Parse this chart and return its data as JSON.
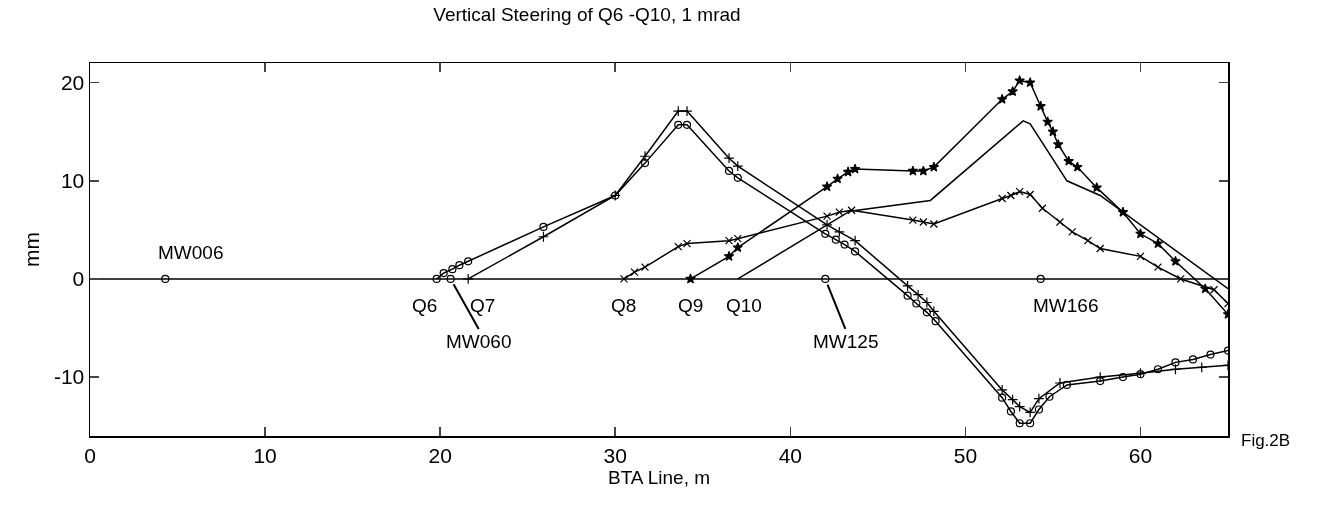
{
  "chart_data": {
    "type": "line",
    "title": "Vertical Steering of Q6 -Q10, 1 mrad",
    "xlabel": "BTA Line, m",
    "ylabel": "mm",
    "xlim": [
      0,
      65
    ],
    "ylim": [
      -16,
      22
    ],
    "xticks": [
      0,
      10,
      20,
      30,
      40,
      50,
      60
    ],
    "yticks": [
      -10,
      0,
      10,
      20
    ],
    "grid": false,
    "line_style": "solid",
    "series": [
      {
        "color": "#000000",
        "marker": "circle",
        "x": [
          19.8,
          20.2,
          20.7,
          21.1,
          21.6,
          25.9,
          30.0,
          31.7,
          33.6,
          34.1,
          36.5,
          37.0,
          42.0,
          42.6,
          43.1,
          43.7,
          46.7,
          47.2,
          47.8,
          48.3,
          52.1,
          52.6,
          53.1,
          53.7,
          54.2,
          54.8,
          55.8,
          57.7,
          59.0,
          60.0,
          61.0,
          62.0,
          63.0,
          64.0,
          65.0
        ],
        "values": [
          0,
          0.6,
          1.0,
          1.4,
          1.8,
          5.3,
          8.5,
          11.8,
          15.7,
          15.7,
          11.0,
          10.3,
          4.6,
          4.0,
          3.5,
          2.8,
          -1.7,
          -2.5,
          -3.4,
          -4.3,
          -12.1,
          -13.5,
          -14.7,
          -14.7,
          -13.3,
          -12.0,
          -10.8,
          -10.4,
          -10.0,
          -9.7,
          -9.2,
          -8.5,
          -8.2,
          -7.7,
          -7.3
        ]
      },
      {
        "color": "#000000",
        "marker": "cross",
        "x": [
          21.6,
          25.9,
          30.0,
          31.7,
          33.6,
          34.1,
          36.5,
          37.0,
          42.1,
          42.8,
          43.7,
          46.7,
          47.3,
          47.8,
          48.2,
          52.1,
          52.7,
          53.1,
          53.7,
          54.2,
          55.4,
          57.7,
          60.0,
          62.0,
          63.5,
          65.0
        ],
        "values": [
          0,
          4.3,
          8.5,
          12.5,
          17.1,
          17.1,
          12.3,
          11.5,
          5.5,
          4.8,
          3.9,
          -0.7,
          -1.6,
          -2.4,
          -3.3,
          -11.3,
          -12.3,
          -13.0,
          -13.6,
          -12.2,
          -10.6,
          -10.0,
          -9.6,
          -9.2,
          -9.0,
          -8.8
        ]
      },
      {
        "color": "#000000",
        "marker": "x",
        "x": [
          30.5,
          31.1,
          31.7,
          33.6,
          34.1,
          36.5,
          37.0,
          42.1,
          42.8,
          43.5,
          47.0,
          47.6,
          48.2,
          52.1,
          52.6,
          53.1,
          53.7,
          54.4,
          55.4,
          56.1,
          57.0,
          57.7,
          60.0,
          61.0,
          62.3,
          64.2,
          65.0
        ],
        "values": [
          0,
          0.7,
          1.2,
          3.3,
          3.6,
          3.9,
          4.1,
          6.4,
          6.8,
          7.0,
          6.0,
          5.8,
          5.6,
          8.2,
          8.5,
          8.9,
          8.6,
          7.2,
          5.8,
          4.8,
          3.9,
          3.1,
          2.3,
          1.2,
          0,
          -1.1,
          -2.5
        ]
      },
      {
        "color": "#000000",
        "marker": "star",
        "x": [
          34.3,
          36.5,
          37.0,
          42.1,
          42.7,
          43.3,
          43.7,
          47.0,
          47.6,
          48.2,
          52.1,
          52.7,
          53.1,
          53.7,
          54.3,
          54.7,
          55.0,
          55.3,
          55.9,
          56.4,
          57.5,
          59.0,
          60.0,
          61.0,
          62.0,
          63.7,
          65.0
        ],
        "values": [
          0,
          2.3,
          3.2,
          9.4,
          10.2,
          10.9,
          11.2,
          11.0,
          11.0,
          11.4,
          18.3,
          19.1,
          20.2,
          20.0,
          17.6,
          16.0,
          15.0,
          13.7,
          12.0,
          11.4,
          9.3,
          6.8,
          4.6,
          3.6,
          1.8,
          -1.0,
          -3.6
        ]
      },
      {
        "color": "#000000",
        "marker": "none",
        "x": [
          37.0,
          43.4,
          48.0,
          53.3,
          53.7,
          55.8,
          57.7,
          65.0
        ],
        "values": [
          0,
          6.9,
          8.0,
          16.1,
          15.8,
          10.0,
          8.5,
          -1.0
        ]
      },
      {
        "color": "#000000",
        "type": "scatter",
        "marker": "circle",
        "x": [
          4.3,
          20.6,
          42.0,
          54.3
        ],
        "values": [
          0,
          0,
          0,
          0
        ]
      }
    ],
    "ref_lines": [
      {
        "axis": "y",
        "value": 0,
        "color": "#000000"
      }
    ],
    "annotations": [
      {
        "text": "MW006",
        "x": 4.3,
        "y": 0
      },
      {
        "text": "Q6",
        "x": 19.8,
        "y": 0
      },
      {
        "text": "MW060",
        "x": 20.6,
        "y": 0
      },
      {
        "text": "Q7",
        "x": 21.6,
        "y": 0
      },
      {
        "text": "Q8",
        "x": 30.5,
        "y": 0
      },
      {
        "text": "Q9",
        "x": 34.3,
        "y": 0
      },
      {
        "text": "Q10",
        "x": 37.0,
        "y": 0
      },
      {
        "text": "MW125",
        "x": 42.0,
        "y": 0
      },
      {
        "text": "MW166",
        "x": 54.3,
        "y": 0
      },
      "Fig.2B"
    ]
  }
}
